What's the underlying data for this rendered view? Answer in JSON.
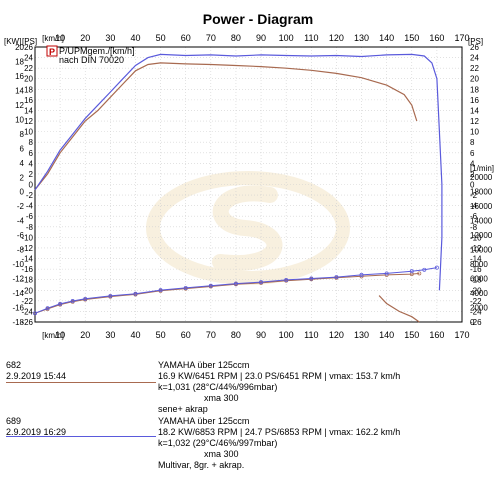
{
  "chart_data": {
    "type": "line",
    "title": "Power - Diagram",
    "x_axis": {
      "label_top": "[km/h]",
      "label_bottom": "[km/h]",
      "range": [
        0,
        170
      ],
      "ticks": [
        10,
        20,
        30,
        40,
        50,
        60,
        70,
        80,
        90,
        100,
        110,
        120,
        130,
        140,
        150,
        160,
        170
      ]
    },
    "left_axis_kw": {
      "unit": "[KW]",
      "range": [
        -18,
        20
      ],
      "ticks": [
        20,
        18,
        16,
        14,
        12,
        10,
        8,
        6,
        4,
        2,
        0,
        -2,
        -4,
        -6,
        -8,
        -10,
        -12,
        -14,
        -16,
        -18
      ]
    },
    "left_axis_ps": {
      "unit": "[PS]",
      "range": [
        -26,
        26
      ],
      "ticks": [
        26,
        24,
        22,
        20,
        18,
        16,
        14,
        12,
        10,
        8,
        6,
        4,
        2,
        0,
        -2,
        -4,
        -6,
        -8,
        -10,
        -12,
        -14,
        -16,
        -18,
        -20,
        -22,
        -24,
        -26
      ]
    },
    "right_axis_ps": {
      "unit": "[PS]",
      "range": [
        -26,
        26
      ],
      "ticks": [
        26,
        24,
        22,
        20,
        18,
        16,
        14,
        12,
        10,
        8,
        6,
        4,
        2,
        0,
        -2,
        -4,
        -6,
        -8,
        -10,
        -12,
        -14,
        -16,
        -18,
        -20,
        -22,
        -24,
        -26
      ]
    },
    "right_axis_rpm": {
      "unit": "[1/min]",
      "range": [
        0,
        20000
      ],
      "ticks": [
        20000,
        18000,
        16000,
        14000,
        12000,
        10000,
        8000,
        6000,
        4000,
        2000,
        0
      ]
    },
    "legend": [
      {
        "icon_text": "P",
        "text": "P/UPMgem./[km/h]"
      },
      {
        "text": "nach DIN 70020"
      }
    ],
    "grid": true,
    "series": [
      {
        "name": "682",
        "color": "#a86a50",
        "power_ps": [
          [
            0,
            -1
          ],
          [
            5,
            2
          ],
          [
            10,
            6
          ],
          [
            15,
            9
          ],
          [
            20,
            12
          ],
          [
            25,
            14
          ],
          [
            30,
            16.5
          ],
          [
            35,
            19
          ],
          [
            40,
            21.5
          ],
          [
            45,
            22.7
          ],
          [
            50,
            23
          ],
          [
            60,
            22.8
          ],
          [
            70,
            22.7
          ],
          [
            80,
            22.5
          ],
          [
            90,
            22.3
          ],
          [
            100,
            22
          ],
          [
            110,
            21.6
          ],
          [
            120,
            21
          ],
          [
            130,
            20.2
          ],
          [
            140,
            18.8
          ],
          [
            147,
            17
          ],
          [
            150,
            15
          ],
          [
            152,
            12
          ]
        ],
        "decel_ps": [
          [
            153,
            -26
          ],
          [
            150,
            -25
          ],
          [
            145,
            -24
          ],
          [
            140,
            -22.5
          ],
          [
            137,
            -21
          ]
        ],
        "rpm": [
          [
            0,
            1200
          ],
          [
            5,
            1800
          ],
          [
            10,
            2400
          ],
          [
            15,
            2800
          ],
          [
            20,
            3100
          ],
          [
            30,
            3500
          ],
          [
            40,
            3800
          ],
          [
            50,
            4300
          ],
          [
            60,
            4600
          ],
          [
            70,
            4900
          ],
          [
            80,
            5200
          ],
          [
            90,
            5400
          ],
          [
            100,
            5700
          ],
          [
            110,
            5900
          ],
          [
            120,
            6100
          ],
          [
            130,
            6300
          ],
          [
            140,
            6500
          ],
          [
            150,
            6600
          ],
          [
            153,
            6700
          ]
        ]
      },
      {
        "name": "689",
        "color": "#5a5adc",
        "power_ps": [
          [
            0,
            -1
          ],
          [
            5,
            2.5
          ],
          [
            10,
            6.5
          ],
          [
            15,
            9.5
          ],
          [
            20,
            12.5
          ],
          [
            25,
            15
          ],
          [
            30,
            17.5
          ],
          [
            35,
            20
          ],
          [
            40,
            22.5
          ],
          [
            45,
            24
          ],
          [
            50,
            24.6
          ],
          [
            60,
            24.4
          ],
          [
            70,
            24.5
          ],
          [
            80,
            24.3
          ],
          [
            90,
            24.5
          ],
          [
            100,
            24.4
          ],
          [
            110,
            24.3
          ],
          [
            120,
            24.4
          ],
          [
            130,
            24.2
          ],
          [
            140,
            24.5
          ],
          [
            150,
            24.6
          ],
          [
            155,
            24.3
          ],
          [
            158,
            23
          ],
          [
            160,
            20
          ],
          [
            161,
            10
          ],
          [
            162,
            0
          ],
          [
            162,
            -10
          ],
          [
            161,
            -20
          ]
        ],
        "rpm": [
          [
            0,
            1200
          ],
          [
            5,
            1900
          ],
          [
            10,
            2500
          ],
          [
            15,
            2900
          ],
          [
            20,
            3200
          ],
          [
            30,
            3600
          ],
          [
            40,
            3900
          ],
          [
            50,
            4400
          ],
          [
            60,
            4700
          ],
          [
            70,
            5000
          ],
          [
            80,
            5300
          ],
          [
            90,
            5500
          ],
          [
            100,
            5800
          ],
          [
            110,
            6000
          ],
          [
            120,
            6200
          ],
          [
            130,
            6500
          ],
          [
            140,
            6700
          ],
          [
            150,
            7000
          ],
          [
            155,
            7200
          ],
          [
            160,
            7500
          ]
        ]
      }
    ]
  },
  "runs": [
    {
      "id": "682",
      "date": "2.9.2019  15:44",
      "color": "#a86a50",
      "vehicle": "YAMAHA über 125ccm",
      "power": "16.9 KW/6451 RPM  |  23.0 PS/6451 RPM  |  vmax: 153.7 km/h",
      "corr": "k=1,031 (28°C/44%/996mbar)",
      "trans": "xma 300",
      "notes": "sene+ akrap"
    },
    {
      "id": "689",
      "date": "2.9.2019  16:29",
      "color": "#5a5adc",
      "vehicle": "YAMAHA über 125ccm",
      "power": "18.2 KW/6853 RPM  |  24.7 PS/6853 RPM  |  vmax: 162.2 km/h",
      "corr": "k=1,032 (29°C/46%/997mbar)",
      "trans": "xma 300",
      "notes": "Multivar, 8gr. + akrap."
    }
  ]
}
